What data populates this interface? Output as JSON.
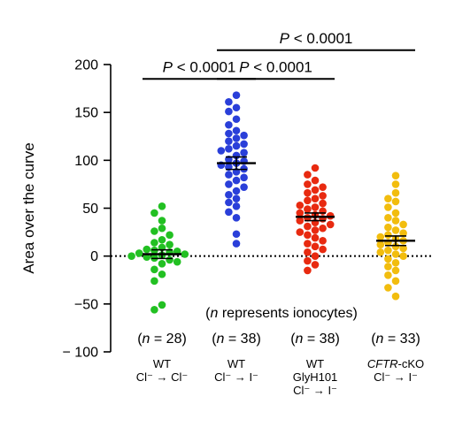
{
  "chart_data": {
    "type": "scatter",
    "ylabel": "Area over the curve",
    "ylim": [
      -100,
      200
    ],
    "yticks": [
      200,
      150,
      100,
      50,
      0,
      -50,
      -100
    ],
    "ytick_labels": [
      "200",
      "150",
      "100",
      "50",
      "0",
      "−50",
      "− 100"
    ],
    "zero_line": "dotted",
    "note": "(n represents ionocytes)",
    "n_var": "n",
    "note_rest": " represents ionocytes)",
    "groups": [
      {
        "label_lines": [
          "WT",
          "Cl⁻ → Cl⁻"
        ],
        "italic_prefix": "",
        "n_label": "(n = 28)",
        "n_value": "= 28)",
        "color": "#22c022",
        "mean": 2,
        "sem": 4.5,
        "values": [
          52,
          45,
          37,
          29,
          26,
          22,
          17,
          14,
          12,
          9,
          7,
          6,
          5,
          4,
          3,
          2,
          1,
          0,
          -1,
          -2,
          -4,
          -6,
          -8,
          -14,
          -19,
          -26,
          -51,
          -56
        ]
      },
      {
        "label_lines": [
          "WT",
          "Cl⁻ → I⁻"
        ],
        "italic_prefix": "",
        "n_label": "(n = 38)",
        "n_value": "= 38)",
        "color": "#2a3fd9",
        "mean": 97,
        "sem": 6.5,
        "values": [
          168,
          161,
          155,
          151,
          143,
          137,
          131,
          128,
          126,
          123,
          120,
          117,
          115,
          112,
          110,
          108,
          105,
          101,
          99,
          97,
          95,
          93,
          91,
          88,
          85,
          82,
          79,
          75,
          72,
          68,
          64,
          60,
          56,
          52,
          46,
          40,
          23,
          13
        ]
      },
      {
        "label_lines": [
          "WT",
          "GlyH101",
          "Cl⁻ → I⁻"
        ],
        "italic_prefix": "",
        "n_label": "(n = 38)",
        "n_value": "= 38)",
        "color": "#e82a10",
        "mean": 41,
        "sem": 4,
        "values": [
          92,
          85,
          79,
          75,
          72,
          69,
          66,
          63,
          60,
          58,
          55,
          53,
          51,
          49,
          47,
          45,
          43,
          42,
          40,
          39,
          37,
          35,
          33,
          31,
          29,
          27,
          25,
          22,
          19,
          16,
          13,
          10,
          7,
          4,
          0,
          -5,
          -9,
          -15
        ]
      },
      {
        "label_lines": [
          "-cKO",
          "Cl⁻ → I⁻"
        ],
        "italic_prefix": "CFTR",
        "n_label": "(n = 33)",
        "n_value": "= 33)",
        "color": "#f2bd0e",
        "mean": 16,
        "sem": 5,
        "values": [
          84,
          75,
          66,
          60,
          57,
          51,
          45,
          40,
          37,
          33,
          30,
          27,
          24,
          22,
          20,
          18,
          16,
          14,
          12,
          10,
          8,
          6,
          4,
          2,
          0,
          -3,
          -7,
          -11,
          -15,
          -20,
          -26,
          -33,
          -42
        ]
      }
    ],
    "comparisons": [
      {
        "from": 0,
        "to": 1,
        "label": "P < 0.0001",
        "p_var": "P",
        "p_rest": " < 0.0001",
        "y": 185
      },
      {
        "from": 1,
        "to": 2,
        "label": "P < 0.0001",
        "p_var": "P",
        "p_rest": " < 0.0001",
        "y": 185
      },
      {
        "from": 1,
        "to": 3,
        "label": "P < 0.0001",
        "p_var": "P",
        "p_rest": " < 0.0001",
        "y": 215
      }
    ]
  }
}
